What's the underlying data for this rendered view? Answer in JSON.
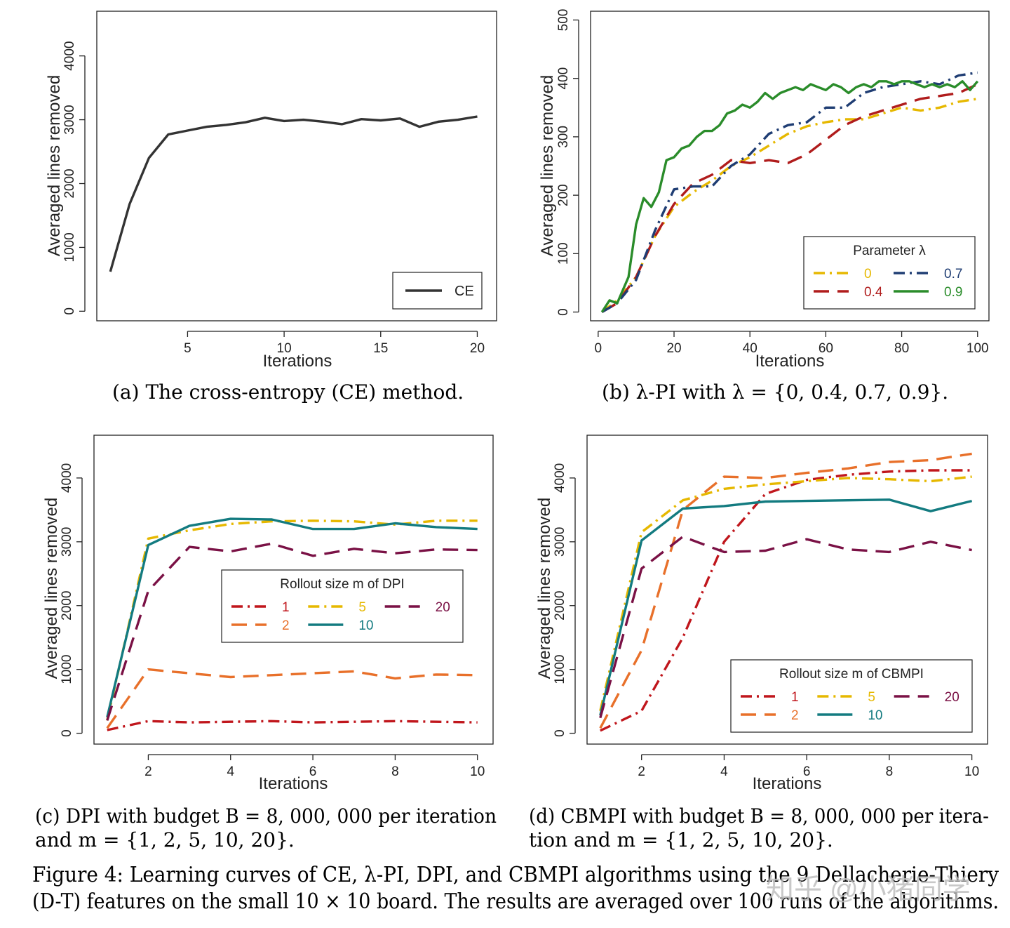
{
  "chart_data": [
    {
      "id": "a",
      "type": "line",
      "xlabel": "Iterations",
      "ylabel": "Averaged lines removed",
      "xlim": [
        0.3,
        21
      ],
      "ylim": [
        -150,
        4700
      ],
      "xticks": [
        5,
        10,
        15,
        20
      ],
      "yticks": [
        0,
        1000,
        2000,
        3000,
        4000
      ],
      "legend": {
        "title": "",
        "position": "bottom-right",
        "cols": 1
      },
      "caption": "(a)  The cross-entropy (CE) method.",
      "series": [
        {
          "name": "CE",
          "color": "#333333",
          "dash": "solid",
          "x": [
            1,
            2,
            3,
            4,
            5,
            6,
            7,
            8,
            9,
            10,
            11,
            12,
            13,
            14,
            15,
            16,
            17,
            18,
            19,
            20
          ],
          "y": [
            620,
            1680,
            2400,
            2770,
            2830,
            2890,
            2920,
            2960,
            3030,
            2980,
            3000,
            2970,
            2930,
            3010,
            2990,
            3020,
            2890,
            2970,
            3000,
            3050
          ]
        }
      ]
    },
    {
      "id": "b",
      "type": "line",
      "xlabel": "Iterations",
      "ylabel": "Averaged lines removed",
      "xlim": [
        -2,
        103
      ],
      "ylim": [
        -15,
        515
      ],
      "xticks": [
        0,
        20,
        40,
        60,
        80,
        100
      ],
      "yticks": [
        0,
        100,
        200,
        300,
        400,
        500
      ],
      "legend": {
        "title": "Parameter λ",
        "position": "bottom-right",
        "cols": 2
      },
      "caption": "(b)  λ-PI with λ = {0, 0.4, 0.7, 0.9}.",
      "series": [
        {
          "name": "0",
          "color": "#e6b800",
          "dash": "dashdot",
          "x": [
            1,
            5,
            10,
            15,
            20,
            25,
            30,
            35,
            40,
            45,
            50,
            55,
            60,
            65,
            70,
            75,
            80,
            85,
            90,
            95,
            100
          ],
          "y": [
            0,
            20,
            60,
            130,
            180,
            205,
            225,
            250,
            265,
            285,
            305,
            318,
            325,
            330,
            330,
            340,
            350,
            345,
            350,
            360,
            365
          ]
        },
        {
          "name": "0.4",
          "color": "#b01c1c",
          "dash": "dashed",
          "x": [
            1,
            5,
            10,
            15,
            20,
            25,
            30,
            35,
            40,
            45,
            50,
            55,
            60,
            65,
            70,
            75,
            80,
            85,
            90,
            95,
            100
          ],
          "y": [
            0,
            15,
            60,
            130,
            185,
            220,
            235,
            260,
            255,
            260,
            255,
            270,
            295,
            320,
            335,
            345,
            355,
            365,
            370,
            375,
            390
          ]
        },
        {
          "name": "0.7",
          "color": "#1f3d73",
          "dash": "dashdot",
          "x": [
            1,
            5,
            10,
            15,
            20,
            25,
            30,
            35,
            40,
            45,
            50,
            55,
            60,
            65,
            70,
            75,
            80,
            85,
            90,
            95,
            100
          ],
          "y": [
            0,
            15,
            55,
            140,
            210,
            215,
            215,
            250,
            270,
            305,
            320,
            325,
            350,
            350,
            375,
            385,
            390,
            395,
            390,
            405,
            410
          ]
        },
        {
          "name": "0.9",
          "color": "#2a8c2a",
          "dash": "solid",
          "x": [
            1,
            3,
            5,
            8,
            10,
            12,
            14,
            16,
            18,
            20,
            22,
            24,
            26,
            28,
            30,
            32,
            34,
            36,
            38,
            40,
            42,
            44,
            46,
            48,
            50,
            52,
            54,
            56,
            58,
            60,
            62,
            64,
            66,
            68,
            70,
            72,
            74,
            76,
            78,
            80,
            82,
            84,
            86,
            88,
            90,
            92,
            94,
            96,
            98,
            100
          ],
          "y": [
            0,
            20,
            15,
            60,
            150,
            195,
            180,
            205,
            260,
            265,
            280,
            285,
            300,
            310,
            310,
            320,
            340,
            345,
            355,
            350,
            360,
            375,
            365,
            375,
            380,
            385,
            380,
            390,
            385,
            380,
            390,
            385,
            375,
            385,
            390,
            385,
            395,
            395,
            390,
            395,
            395,
            390,
            385,
            390,
            385,
            390,
            385,
            395,
            380,
            395
          ]
        }
      ]
    },
    {
      "id": "c",
      "type": "line",
      "xlabel": "Iterations",
      "ylabel": "Averaged lines removed",
      "xlim": [
        0.68,
        10.38
      ],
      "ylim": [
        -170,
        4670
      ],
      "xticks": [
        2,
        4,
        6,
        8,
        10
      ],
      "yticks": [
        0,
        1000,
        2000,
        3000,
        4000
      ],
      "legend": {
        "title": "Rollout size m of DPI",
        "position": "center-right",
        "cols": 3
      },
      "caption_line1": "(c) DPI with budget B = 8, 000, 000 per iteration",
      "caption_line2": "and m = {1, 2, 5, 10, 20}.",
      "series": [
        {
          "name": "1",
          "color": "#c0161c",
          "dash": "dashdot",
          "x": [
            1,
            2,
            3,
            4,
            5,
            6,
            7,
            8,
            9,
            10
          ],
          "y": [
            50,
            190,
            170,
            180,
            190,
            170,
            180,
            190,
            180,
            170
          ]
        },
        {
          "name": "2",
          "color": "#e8702a",
          "dash": "dashed",
          "x": [
            1,
            2,
            3,
            4,
            5,
            6,
            7,
            8,
            9,
            10
          ],
          "y": [
            80,
            1000,
            940,
            880,
            910,
            940,
            970,
            860,
            920,
            910
          ]
        },
        {
          "name": "5",
          "color": "#e6b800",
          "dash": "dashdot",
          "x": [
            1,
            2,
            3,
            4,
            5,
            6,
            7,
            8,
            9,
            10
          ],
          "y": [
            200,
            3050,
            3180,
            3280,
            3320,
            3330,
            3320,
            3270,
            3330,
            3330
          ]
        },
        {
          "name": "10",
          "color": "#137b80",
          "dash": "solid",
          "x": [
            1,
            2,
            3,
            4,
            5,
            6,
            7,
            8,
            9,
            10
          ],
          "y": [
            250,
            2950,
            3250,
            3360,
            3350,
            3200,
            3200,
            3290,
            3230,
            3200
          ]
        },
        {
          "name": "20",
          "color": "#7a1145",
          "dash": "dashed",
          "x": [
            1,
            2,
            3,
            4,
            5,
            6,
            7,
            8,
            9,
            10
          ],
          "y": [
            200,
            2230,
            2920,
            2850,
            2970,
            2780,
            2890,
            2820,
            2880,
            2870
          ]
        }
      ]
    },
    {
      "id": "d",
      "type": "line",
      "xlabel": "Iterations",
      "ylabel": "Averaged lines removed",
      "xlim": [
        0.68,
        10.38
      ],
      "ylim": [
        -170,
        4670
      ],
      "xticks": [
        2,
        4,
        6,
        8,
        10
      ],
      "yticks": [
        0,
        1000,
        2000,
        3000,
        4000
      ],
      "legend": {
        "title": "Rollout size m of CBMPI",
        "position": "bottom-right",
        "cols": 3
      },
      "caption_line1": "(d) CBMPI with budget B = 8, 000, 000 per itera-",
      "caption_line2": "tion and m = {1, 2, 5, 10, 20}.",
      "series": [
        {
          "name": "1",
          "color": "#c0161c",
          "dash": "dashdot",
          "x": [
            1,
            2,
            3,
            4,
            5,
            6,
            7,
            8,
            9,
            10
          ],
          "y": [
            40,
            350,
            1500,
            3000,
            3750,
            3970,
            4050,
            4100,
            4120,
            4120
          ]
        },
        {
          "name": "2",
          "color": "#e8702a",
          "dash": "dashed",
          "x": [
            1,
            2,
            3,
            4,
            5,
            6,
            7,
            8,
            9,
            10
          ],
          "y": [
            80,
            1300,
            3500,
            4020,
            4000,
            4080,
            4150,
            4250,
            4280,
            4380
          ]
        },
        {
          "name": "5",
          "color": "#e6b800",
          "dash": "dashdot",
          "x": [
            1,
            2,
            3,
            4,
            5,
            6,
            7,
            8,
            9,
            10
          ],
          "y": [
            350,
            3150,
            3650,
            3830,
            3900,
            3950,
            4000,
            3980,
            3950,
            4020
          ]
        },
        {
          "name": "10",
          "color": "#137b80",
          "dash": "solid",
          "x": [
            1,
            2,
            3,
            4,
            5,
            6,
            7,
            8,
            9,
            10
          ],
          "y": [
            280,
            3020,
            3520,
            3560,
            3630,
            3640,
            3650,
            3660,
            3480,
            3640
          ]
        },
        {
          "name": "20",
          "color": "#7a1145",
          "dash": "dashed",
          "x": [
            1,
            2,
            3,
            4,
            5,
            6,
            7,
            8,
            9,
            10
          ],
          "y": [
            240,
            2580,
            3080,
            2840,
            2860,
            3040,
            2880,
            2840,
            3000,
            2870
          ]
        }
      ]
    }
  ],
  "figure_caption_line1": "Figure 4: Learning curves of CE, λ-PI, DPI, and CBMPI algorithms using the 9 Dellacherie-Thiery",
  "figure_caption_line2": "(D-T) features on the small 10 × 10 board. The results are averaged over 100 runs of the algorithms.",
  "watermark": "知乎 @小猪同学"
}
